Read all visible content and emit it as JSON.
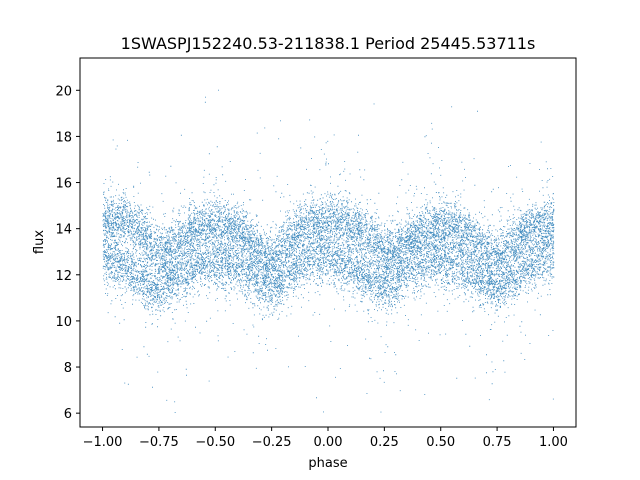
{
  "chart_data": {
    "type": "scatter",
    "title": "1SWASPJ152240.53-211838.1 Period 25445.53711s",
    "xlabel": "phase",
    "ylabel": "flux",
    "xlim": [
      -1.1,
      1.1
    ],
    "ylim": [
      5.4,
      21.4
    ],
    "xticks": [
      -1.0,
      -0.75,
      -0.5,
      -0.25,
      0.0,
      0.25,
      0.5,
      0.75,
      1.0
    ],
    "xtick_labels": [
      "−1.00",
      "−0.75",
      "−0.50",
      "−0.25",
      "0.00",
      "0.25",
      "0.50",
      "0.75",
      "1.00"
    ],
    "yticks": [
      6,
      8,
      10,
      12,
      14,
      16,
      18,
      20
    ],
    "ytick_labels": [
      "6",
      "8",
      "10",
      "12",
      "14",
      "16",
      "18",
      "20"
    ],
    "grid": false,
    "marker_color": "#1f77b4",
    "series": [
      {
        "x_range": [
          -1.0,
          1.0
        ],
        "envelope": {
          "phase": [
            -1.0,
            -0.9,
            -0.8,
            -0.75,
            -0.7,
            -0.6,
            -0.5,
            -0.4,
            -0.3,
            -0.25,
            -0.2,
            -0.1,
            0.0,
            0.1,
            0.2,
            0.25,
            0.3,
            0.4,
            0.5,
            0.6,
            0.7,
            0.75,
            0.8,
            0.9,
            1.0
          ],
          "upper_flux": [
            14.3,
            14.4,
            13.6,
            13.0,
            13.1,
            14.0,
            14.2,
            14.0,
            13.0,
            12.6,
            13.3,
            14.2,
            14.4,
            14.2,
            13.5,
            13.0,
            13.1,
            13.9,
            14.2,
            13.9,
            13.1,
            12.7,
            13.3,
            14.1,
            14.3
          ],
          "lower_flux": [
            12.8,
            12.3,
            11.6,
            11.5,
            11.8,
            12.4,
            12.6,
            12.3,
            11.6,
            11.4,
            11.8,
            12.6,
            12.8,
            12.4,
            11.7,
            11.5,
            11.8,
            12.5,
            12.7,
            12.3,
            11.6,
            11.4,
            11.8,
            12.5,
            12.8
          ]
        },
        "outlier_range": [
          6.0,
          20.6
        ]
      }
    ]
  }
}
